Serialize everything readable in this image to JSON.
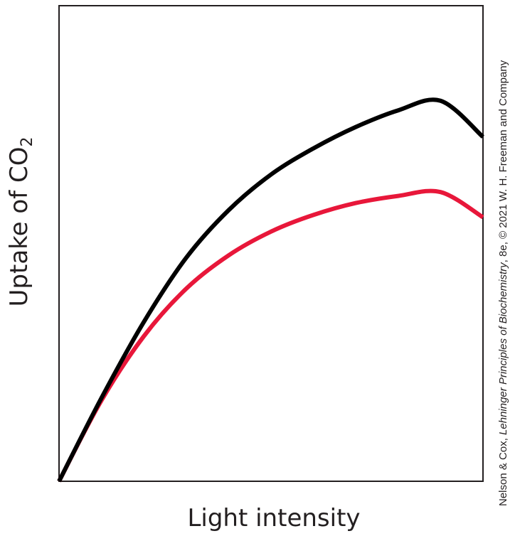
{
  "chart_data": {
    "type": "line",
    "title": "",
    "xlabel": "Light intensity",
    "ylabel": {
      "main": "Uptake of CO",
      "subscript": "2"
    },
    "xlim": [
      0,
      1
    ],
    "ylim": [
      0,
      1
    ],
    "x": [
      0,
      0.1,
      0.2,
      0.3,
      0.4,
      0.5,
      0.6,
      0.7,
      0.8,
      0.9,
      1.0
    ],
    "series": [
      {
        "color": "#000000",
        "values": [
          0.0,
          0.175,
          0.335,
          0.47,
          0.57,
          0.645,
          0.7,
          0.745,
          0.78,
          0.8,
          0.724
        ]
      },
      {
        "color": "#e8173a",
        "values": [
          0.0,
          0.17,
          0.305,
          0.405,
          0.475,
          0.525,
          0.56,
          0.585,
          0.6,
          0.608,
          0.555
        ]
      }
    ],
    "grid": false,
    "legend": "none"
  },
  "credit": {
    "authors": "Nelson & Cox, ",
    "book": "Lehninger Principles of Biochemistry",
    "rest": ", 8e, © 2021 W. H. Freeman and Company"
  }
}
